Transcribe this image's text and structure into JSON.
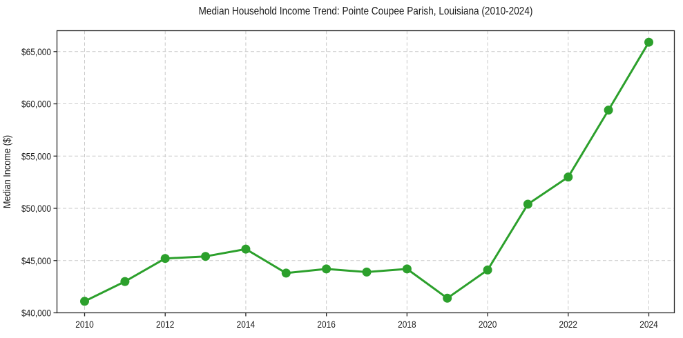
{
  "figure": {
    "background": "#ffffff"
  },
  "chart_data": {
    "type": "line",
    "title": "Median Household Income Trend: Pointe Coupee Parish, Louisiana (2010-2024)",
    "xlabel": "",
    "ylabel": "Median Income ($)",
    "x": [
      2010,
      2011,
      2012,
      2013,
      2014,
      2015,
      2016,
      2017,
      2018,
      2019,
      2020,
      2021,
      2022,
      2023,
      2024
    ],
    "values": [
      41100,
      43000,
      45200,
      45400,
      46100,
      43800,
      44200,
      43900,
      44200,
      41400,
      44100,
      50400,
      53000,
      59400,
      65900
    ],
    "ylim": [
      40000,
      67000
    ],
    "yticks": [
      40000,
      45000,
      50000,
      55000,
      60000,
      65000
    ],
    "ytick_labels": [
      "$40,000",
      "$45,000",
      "$50,000",
      "$55,000",
      "$60,000",
      "$65,000"
    ],
    "xticks": [
      2010,
      2012,
      2014,
      2016,
      2018,
      2020,
      2022,
      2024
    ],
    "xtick_labels": [
      "2010",
      "2012",
      "2014",
      "2016",
      "2018",
      "2020",
      "2022",
      "2024"
    ],
    "grid": true,
    "grid_style": "dashed",
    "legend_position": "none",
    "line_color": "#2ca02c",
    "marker": "circle",
    "marker_radius": 6.5,
    "line_width": 3,
    "grid_color": "#c9c9c9",
    "axis_color": "#262626",
    "text_color": "#1a1a1a",
    "plot_background": "#ffffff"
  }
}
